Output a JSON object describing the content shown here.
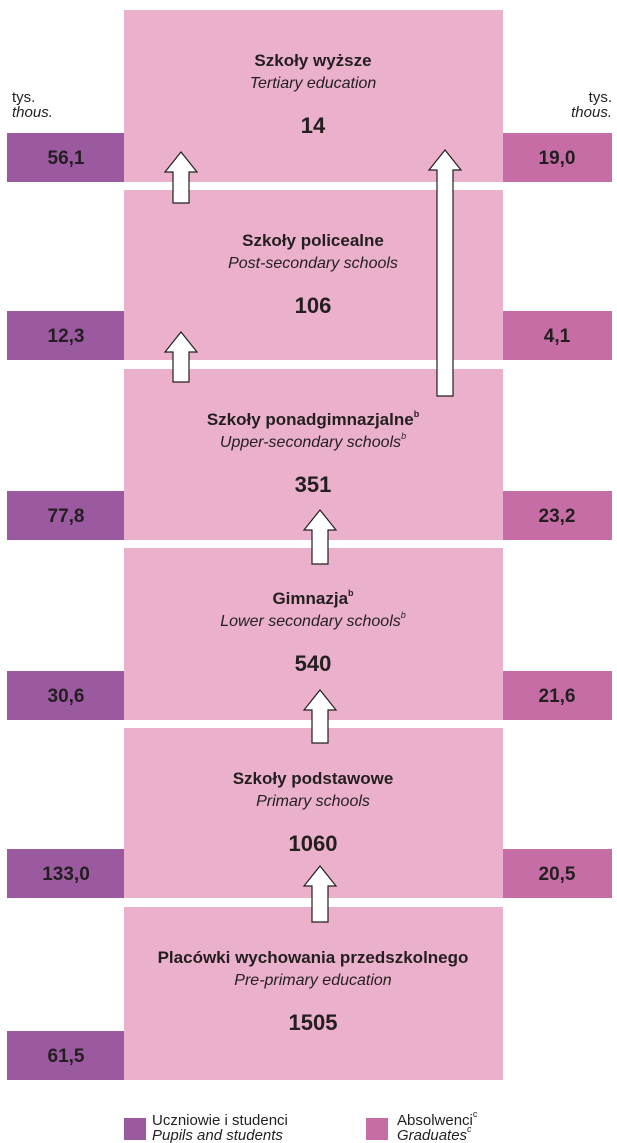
{
  "units": {
    "pl": "tys.",
    "en": "thous."
  },
  "levels": [
    {
      "pl": "Szkoły wyższe",
      "en": "Tertiary education",
      "count": "14",
      "pupils": "56,1",
      "graduates": "19,0"
    },
    {
      "pl": "Szkoły policealne",
      "en": "Post-secondary schools",
      "count": "106",
      "pupils": "12,3",
      "graduates": "4,1"
    },
    {
      "pl": "Szkoły ponadgimnazjalne",
      "note": "b",
      "en": "Upper-secondary schools",
      "count": "351",
      "pupils": "77,8",
      "graduates": "23,2"
    },
    {
      "pl": "Gimnazja",
      "note": "b",
      "en": "Lower secondary schools",
      "count": "540",
      "pupils": "30,6",
      "graduates": "21,6"
    },
    {
      "pl": "Szkoły podstawowe",
      "en": "Primary schools",
      "count": "1060",
      "pupils": "133,0",
      "graduates": "20,5"
    },
    {
      "pl": "Placówki wychowania przedszkolnego",
      "en": "Pre-primary education",
      "count": "1505",
      "pupils": "61,5"
    }
  ],
  "legend": [
    {
      "pl": "Uczniowie i studenci",
      "en": "Pupils and students"
    },
    {
      "pl": "Absolwenci",
      "en": "Graduates",
      "note": "c"
    }
  ]
}
